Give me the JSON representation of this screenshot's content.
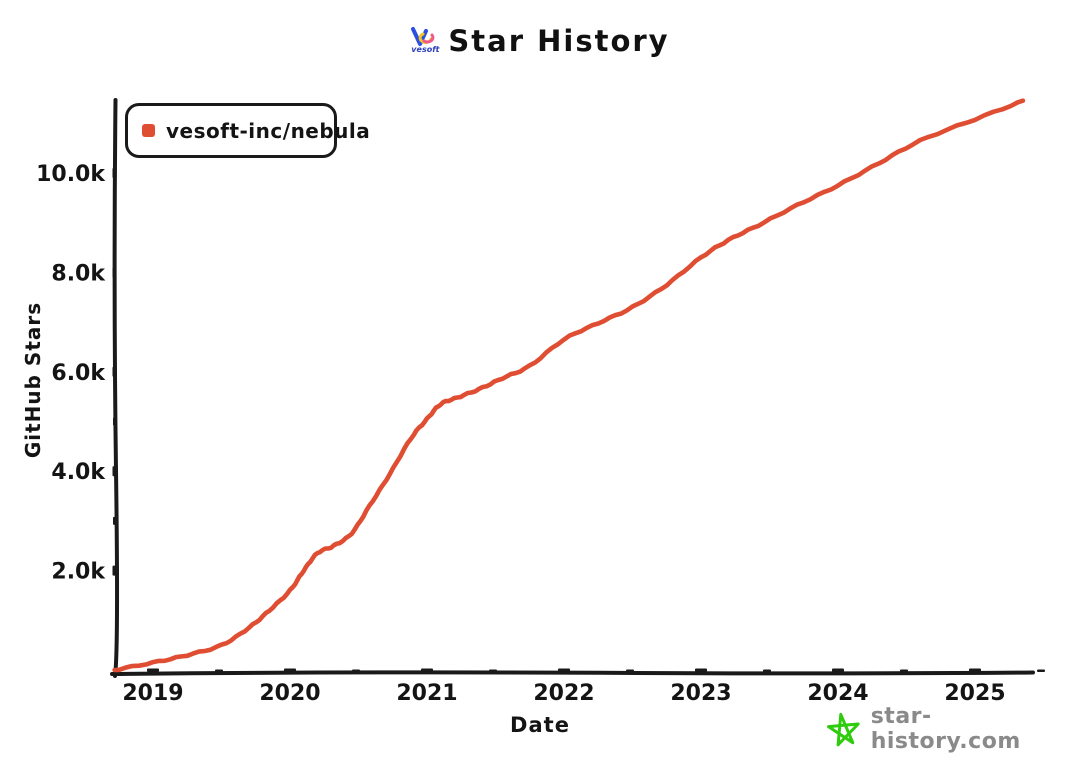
{
  "title": "Star History",
  "logo": {
    "vesoft_label": "vesoft"
  },
  "legend": {
    "series_label": "vesoft-inc/nebula",
    "marker_color": "#df4e32"
  },
  "axes": {
    "y_title": "GitHub Stars",
    "x_title": "Date"
  },
  "watermark": {
    "text": "star-history.com",
    "star_color": "#2ecc0c",
    "text_color": "#8a8a8a"
  },
  "chart_data": {
    "type": "line",
    "title": "Star History",
    "xlabel": "Date",
    "ylabel": "GitHub Stars",
    "grid": false,
    "legend_position": "top-left",
    "xlim": [
      2018.72,
      2025.45
    ],
    "ylim": [
      0,
      11700
    ],
    "x_ticks": [
      {
        "v": 2019,
        "label": "2019"
      },
      {
        "v": 2020,
        "label": "2020"
      },
      {
        "v": 2021,
        "label": "2021"
      },
      {
        "v": 2022,
        "label": "2022"
      },
      {
        "v": 2023,
        "label": "2023"
      },
      {
        "v": 2024,
        "label": "2024"
      },
      {
        "v": 2025,
        "label": "2025"
      }
    ],
    "y_ticks": [
      {
        "v": 2000,
        "label": "2.0k"
      },
      {
        "v": 4000,
        "label": "4.0k"
      },
      {
        "v": 6000,
        "label": "6.0k"
      },
      {
        "v": 8000,
        "label": "8.0k"
      },
      {
        "v": 10000,
        "label": "10.0k"
      }
    ],
    "series": [
      {
        "name": "vesoft-inc/nebula",
        "color": "#df4e32",
        "points": [
          [
            2018.72,
            0
          ],
          [
            2019.0,
            150
          ],
          [
            2019.25,
            300
          ],
          [
            2019.5,
            500
          ],
          [
            2019.7,
            850
          ],
          [
            2019.85,
            1200
          ],
          [
            2020.0,
            1600
          ],
          [
            2020.1,
            2000
          ],
          [
            2020.2,
            2350
          ],
          [
            2020.32,
            2500
          ],
          [
            2020.45,
            2750
          ],
          [
            2020.58,
            3300
          ],
          [
            2020.73,
            3950
          ],
          [
            2020.88,
            4650
          ],
          [
            2021.0,
            5050
          ],
          [
            2021.1,
            5350
          ],
          [
            2021.22,
            5480
          ],
          [
            2021.38,
            5650
          ],
          [
            2021.55,
            5870
          ],
          [
            2021.75,
            6120
          ],
          [
            2022.0,
            6650
          ],
          [
            2022.25,
            6980
          ],
          [
            2022.5,
            7300
          ],
          [
            2022.75,
            7750
          ],
          [
            2023.0,
            8300
          ],
          [
            2023.2,
            8650
          ],
          [
            2023.42,
            8950
          ],
          [
            2023.7,
            9350
          ],
          [
            2024.0,
            9750
          ],
          [
            2024.3,
            10200
          ],
          [
            2024.6,
            10650
          ],
          [
            2025.0,
            11080
          ],
          [
            2025.35,
            11450
          ]
        ]
      }
    ]
  }
}
